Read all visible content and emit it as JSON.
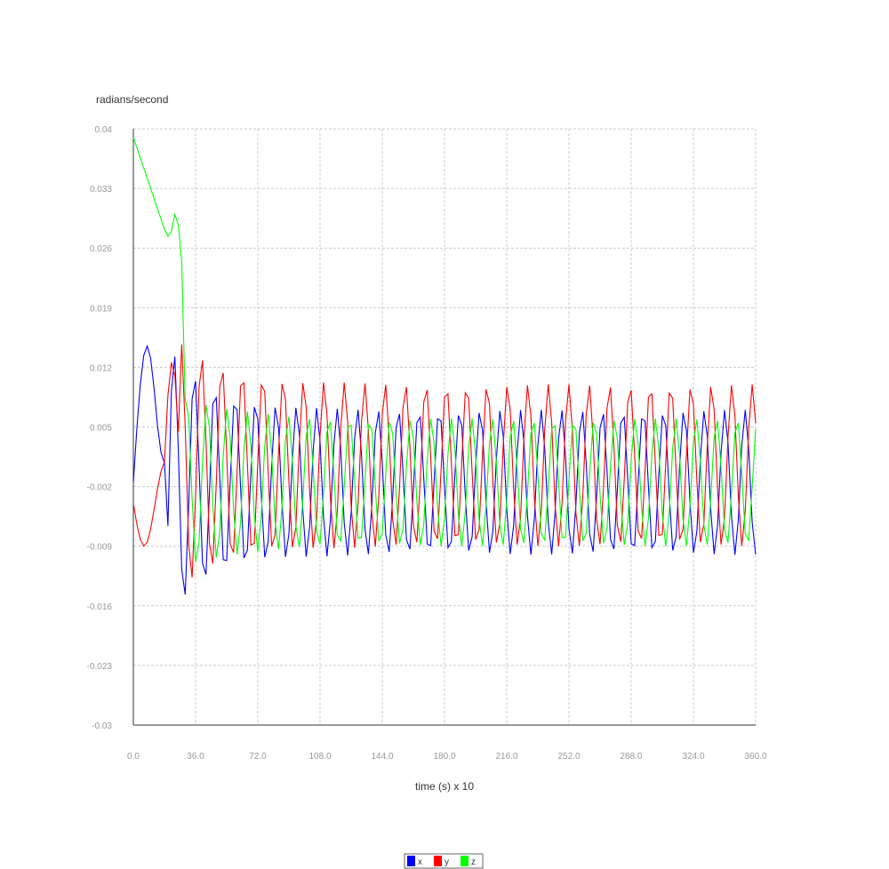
{
  "chart_data": {
    "type": "line",
    "title": "",
    "xlabel": "time (s) x 10",
    "ylabel": "radians/second",
    "xlim": [
      0,
      360
    ],
    "ylim": [
      -0.03,
      0.04
    ],
    "xticks": [
      "0.0",
      "36.0",
      "72.0",
      "108.0",
      "144.0",
      "180.0",
      "216.0",
      "252.0",
      "288.0",
      "324.0",
      "360.0"
    ],
    "yticks": [
      "0.04",
      "0.033",
      "0.026",
      "0.019",
      "0.012",
      "0.005",
      "-0.002",
      "-0.009",
      "-0.016",
      "-0.023",
      "-0.03"
    ],
    "grid": true,
    "legend_position": "bottom-center",
    "series": [
      {
        "name": "x",
        "color": "#0000ff"
      },
      {
        "name": "y",
        "color": "#ff0000"
      },
      {
        "name": "z",
        "color": "#00ff00"
      }
    ]
  }
}
